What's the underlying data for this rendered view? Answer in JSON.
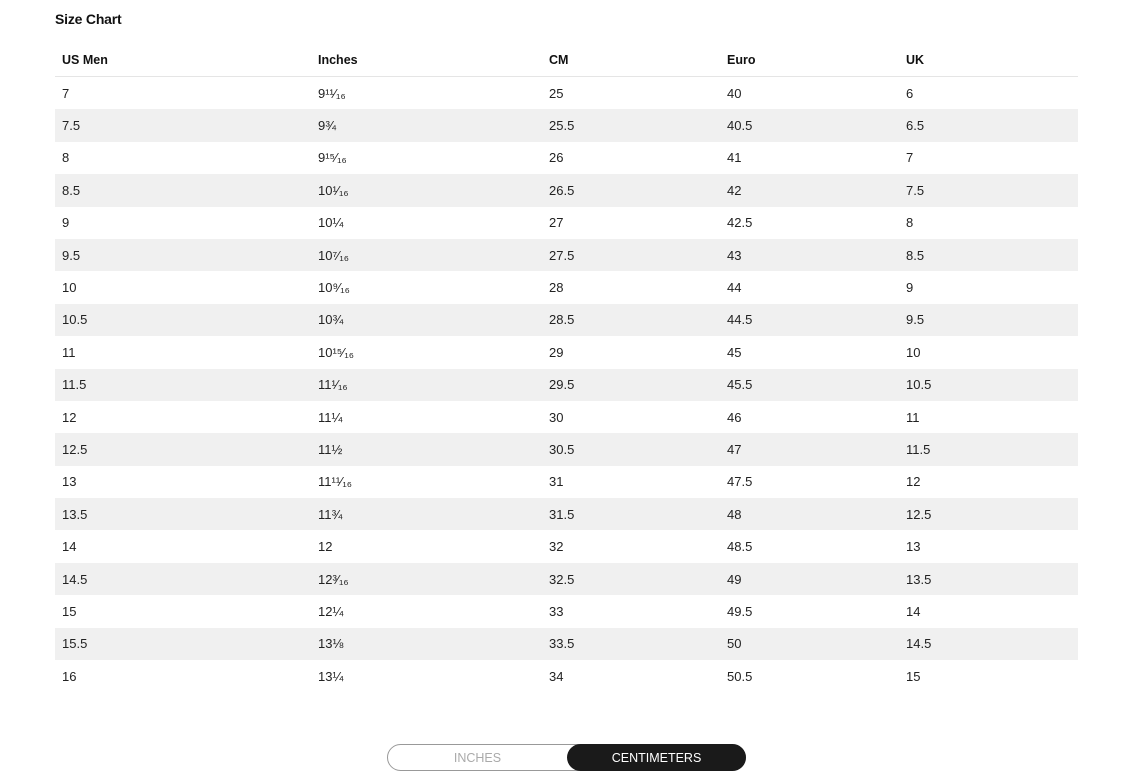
{
  "title": "Size Chart",
  "headers": [
    "US Men",
    "Inches",
    "CM",
    "Euro",
    "UK"
  ],
  "rows": [
    [
      "7",
      "9¹¹⁄₁₆",
      "25",
      "40",
      "6"
    ],
    [
      "7.5",
      "9¾",
      "25.5",
      "40.5",
      "6.5"
    ],
    [
      "8",
      "9¹⁵⁄₁₆",
      "26",
      "41",
      "7"
    ],
    [
      "8.5",
      "10¹⁄₁₆",
      "26.5",
      "42",
      "7.5"
    ],
    [
      "9",
      "10¼",
      "27",
      "42.5",
      "8"
    ],
    [
      "9.5",
      "10⁷⁄₁₆",
      "27.5",
      "43",
      "8.5"
    ],
    [
      "10",
      "10⁹⁄₁₆",
      "28",
      "44",
      "9"
    ],
    [
      "10.5",
      "10¾",
      "28.5",
      "44.5",
      "9.5"
    ],
    [
      "11",
      "10¹⁵⁄₁₆",
      "29",
      "45",
      "10"
    ],
    [
      "11.5",
      "11¹⁄₁₆",
      "29.5",
      "45.5",
      "10.5"
    ],
    [
      "12",
      "11¼",
      "30",
      "46",
      "11"
    ],
    [
      "12.5",
      "11½",
      "30.5",
      "47",
      "11.5"
    ],
    [
      "13",
      "11¹¹⁄₁₆",
      "31",
      "47.5",
      "12"
    ],
    [
      "13.5",
      "11¾",
      "31.5",
      "48",
      "12.5"
    ],
    [
      "14",
      "12",
      "32",
      "48.5",
      "13"
    ],
    [
      "14.5",
      "12³⁄₁₆",
      "32.5",
      "49",
      "13.5"
    ],
    [
      "15",
      "12¼",
      "33",
      "49.5",
      "14"
    ],
    [
      "15.5",
      "13⅛",
      "33.5",
      "50",
      "14.5"
    ],
    [
      "16",
      "13¼",
      "34",
      "50.5",
      "15"
    ]
  ],
  "toggle": {
    "options": [
      "INCHES",
      "CENTIMETERS"
    ],
    "selected": "CENTIMETERS"
  }
}
